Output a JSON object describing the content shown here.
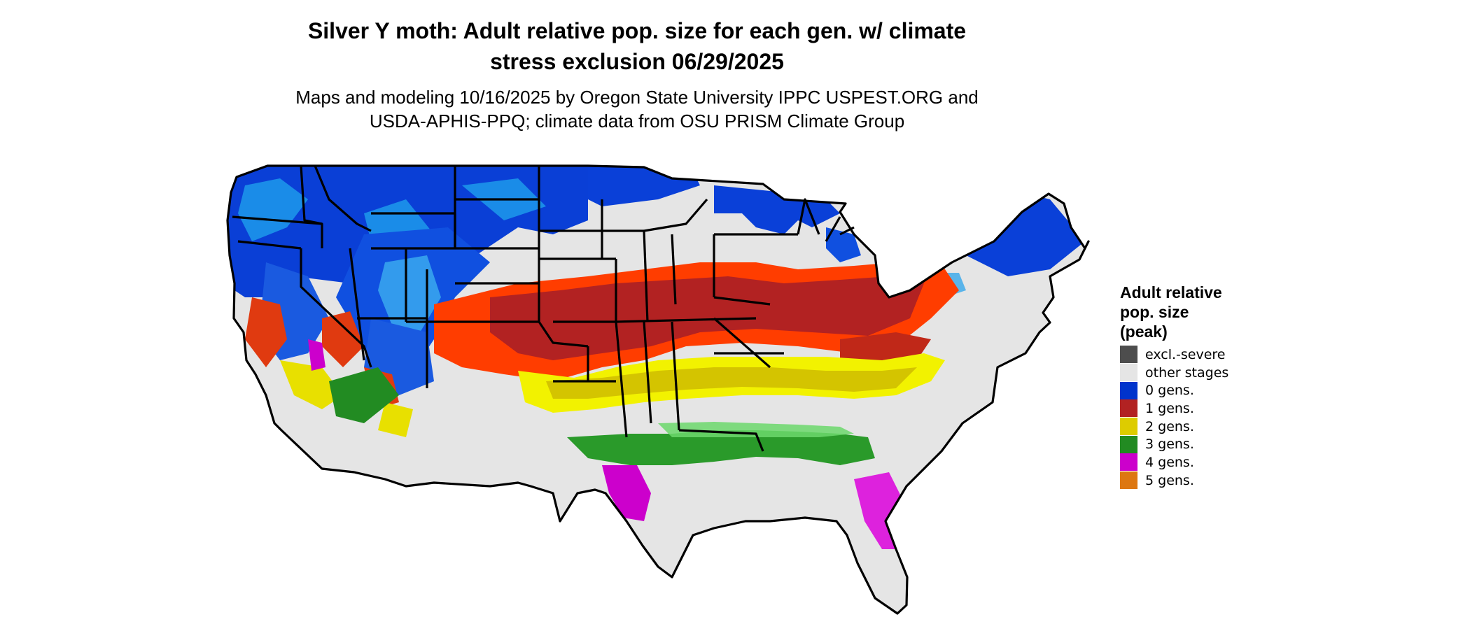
{
  "map": {
    "title_lines": [
      "Silver Y moth: Adult relative pop. size for each gen. w/ climate",
      "stress exclusion 06/29/2025"
    ],
    "subtitle_lines": [
      "Maps and modeling 10/16/2025 by Oregon State University IPPC USPEST.ORG and",
      "USDA-APHIS-PPQ; climate data from OSU PRISM Climate Group"
    ],
    "region": "Contiguous United States",
    "colors": {
      "excl_severe": "#4d4d4d",
      "other_stages": "#e5e5e5",
      "gen0": "#0033cc",
      "gen0_light": "#00aaee",
      "gen1": "#b22222",
      "gen1_light": "#ff4400",
      "gen2": "#ddcc00",
      "gen2_light": "#ffff00",
      "gen3": "#228b22",
      "gen3_light": "#66dd66",
      "gen4": "#cc00cc",
      "gen5": "#dd7711",
      "state_border": "#000000"
    }
  },
  "legend": {
    "title_lines": [
      "Adult relative",
      "pop. size",
      "(peak)"
    ],
    "items": [
      {
        "label": "excl.-severe",
        "color": "#4d4d4d"
      },
      {
        "label": "other stages",
        "color": "#e5e5e5"
      },
      {
        "label": "0 gens.",
        "color": "#0033cc"
      },
      {
        "label": "1 gens.",
        "color": "#b22222"
      },
      {
        "label": "2 gens.",
        "color": "#ddcc00"
      },
      {
        "label": "3 gens.",
        "color": "#228b22"
      },
      {
        "label": "4 gens.",
        "color": "#cc00cc"
      },
      {
        "label": "5 gens.",
        "color": "#dd7711"
      }
    ]
  }
}
